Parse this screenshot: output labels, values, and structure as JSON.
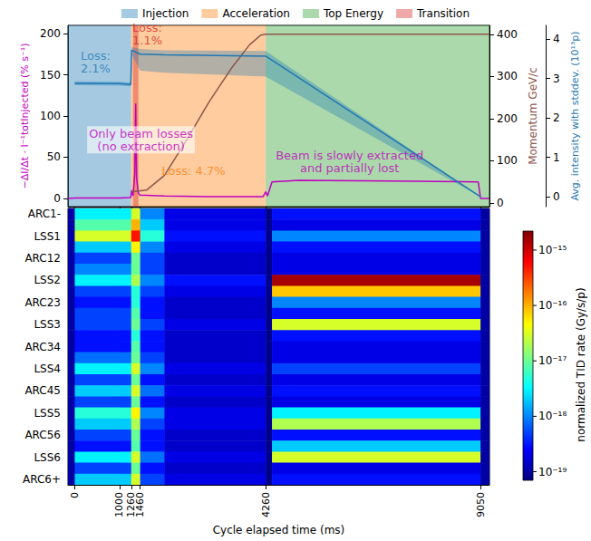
{
  "chart_data": {
    "type": "line",
    "x_label": "Cycle elapsed time (ms)",
    "xlim": [
      -150,
      9250
    ],
    "xticks": [
      0,
      1000,
      1260,
      1460,
      4260,
      9050
    ],
    "y_label": "−ΔI/Δt · I⁻¹totInjected (% s⁻¹)",
    "ylim": [
      -10,
      210
    ],
    "yticks": [
      0,
      50,
      100,
      150,
      200
    ],
    "y2_label": "Momentum GeV/c",
    "y2lim": [
      -9,
      421
    ],
    "y2ticks": [
      0,
      100,
      200,
      300,
      400
    ],
    "y3_label": "Avg. intensity with stddev. (10¹³p)",
    "y3lim": [
      -0.25,
      4.35
    ],
    "y3ticks": [
      0,
      1,
      2,
      3,
      4
    ],
    "grid": false,
    "legend": "top",
    "regions": [
      {
        "name": "Injection",
        "color": "#1f77b4",
        "x": [
          -150,
          1260
        ]
      },
      {
        "name": "Acceleration",
        "color": "#ff7f0e",
        "x": [
          1260,
          4260
        ]
      },
      {
        "name": "Top Energy",
        "color": "#2ca02c",
        "x": [
          4260,
          9250
        ]
      },
      {
        "name": "Transition",
        "color": "#d62728",
        "x": [
          1300,
          1420
        ]
      }
    ],
    "series": [
      {
        "type": "line",
        "axis": "y",
        "color": "#bf00bf",
        "x": [
          -150,
          0,
          1000,
          1250,
          1270,
          1300,
          1340,
          1360,
          1380,
          1420,
          1460,
          2000,
          3000,
          4200,
          4260,
          4300,
          4400,
          5000,
          7000,
          9000,
          9050,
          9250
        ],
        "values": [
          0,
          0.5,
          0.5,
          1,
          10,
          3,
          30,
          115,
          25,
          6,
          4,
          3,
          2,
          2,
          8,
          3,
          20,
          22,
          21,
          20,
          0,
          0
        ]
      },
      {
        "type": "line",
        "axis": "y2",
        "color": "#8c564b",
        "x": [
          1260,
          1600,
          2000,
          2500,
          3000,
          3500,
          3900,
          4150,
          4260,
          9050,
          9250
        ],
        "values": [
          26,
          30,
          65,
          150,
          240,
          320,
          375,
          398,
          400,
          400,
          400
        ]
      },
      {
        "type": "line",
        "axis": "y3",
        "color": "#1f77b4",
        "x": [
          0,
          1000,
          1250,
          1270,
          1460,
          2000,
          4260,
          9050
        ],
        "values": [
          2.88,
          2.87,
          2.85,
          3.72,
          3.62,
          3.6,
          3.57,
          0
        ],
        "stddev_lower": [
          2.83,
          2.82,
          2.8,
          3.62,
          3.2,
          3.15,
          3.05,
          0
        ],
        "stddev_upper": [
          2.93,
          2.92,
          2.9,
          3.8,
          3.75,
          3.72,
          3.7,
          0
        ]
      }
    ],
    "annotations": [
      {
        "text": "Loss:\n2.1%",
        "x": 465,
        "y": 165,
        "color": "#1f77b4"
      },
      {
        "text": "Loss:\n1.1%",
        "x": 1620,
        "y": 200,
        "color": "#d62728"
      },
      {
        "text": "Only beam losses\n(no extraction)",
        "x": 1478,
        "y": 71,
        "color": "#bf00bf"
      },
      {
        "text": "Loss: 4.7%",
        "x": 2650,
        "y": 33,
        "color": "#ff7f0e"
      },
      {
        "text": "Beam is slowly extracted\nand partially lost",
        "x": 6130,
        "y": 45,
        "color": "#bf00bf"
      }
    ],
    "heatmap": {
      "rows": [
        "ARC1-",
        null,
        "LSS1",
        null,
        "ARC12",
        null,
        "LSS2",
        null,
        "ARC23",
        null,
        "LSS3",
        null,
        "ARC34",
        null,
        "LSS4",
        null,
        "ARC45",
        null,
        "LSS5",
        null,
        "ARC56",
        null,
        "LSS6",
        null,
        "ARC6+"
      ],
      "x_edges": [
        -150,
        0,
        1000,
        1260,
        1460,
        2000,
        4260,
        4400,
        9050,
        9250
      ],
      "values": [
        [
          1e-19,
          3e-18,
          3e-18,
          3e-17,
          1e-18,
          2e-19,
          8e-20,
          3e-19,
          1e-19
        ],
        [
          1e-19,
          8e-18,
          8e-18,
          1e-16,
          2e-18,
          2e-19,
          8e-20,
          2e-19,
          1e-19
        ],
        [
          1e-19,
          3e-17,
          3e-17,
          5e-16,
          5e-18,
          3e-19,
          8e-20,
          1e-18,
          1e-19
        ],
        [
          1e-19,
          2e-18,
          2e-18,
          5e-17,
          1e-18,
          2e-19,
          8e-20,
          3e-19,
          1e-19
        ],
        [
          1e-19,
          5e-19,
          5e-19,
          1e-17,
          5e-19,
          1.5e-19,
          8e-20,
          2e-19,
          1e-19
        ],
        [
          1e-19,
          1e-18,
          1e-18,
          1e-17,
          5e-19,
          1.5e-19,
          8e-20,
          2e-19,
          1e-19
        ],
        [
          1e-19,
          3e-18,
          3e-18,
          2e-17,
          1e-18,
          3e-19,
          8e-20,
          1.5e-15,
          1e-19
        ],
        [
          1e-19,
          5e-19,
          5e-19,
          5e-18,
          5e-19,
          2e-19,
          8e-20,
          8e-17,
          1e-19
        ],
        [
          1e-19,
          3e-19,
          3e-19,
          5e-18,
          3e-19,
          1.5e-19,
          8e-20,
          1e-18,
          1e-19
        ],
        [
          1e-19,
          5e-19,
          5e-19,
          8e-18,
          3e-19,
          1.5e-19,
          8e-20,
          3e-19,
          1e-19
        ],
        [
          1e-19,
          5e-19,
          5e-19,
          1e-17,
          5e-19,
          2e-19,
          8e-20,
          3e-17,
          1e-19
        ],
        [
          1e-19,
          3e-19,
          3e-19,
          5e-18,
          3e-19,
          1.5e-19,
          8e-20,
          3e-19,
          1e-19
        ],
        [
          1e-19,
          3e-19,
          3e-19,
          8e-18,
          3e-19,
          1.5e-19,
          8e-20,
          2e-19,
          1e-19
        ],
        [
          1e-19,
          8e-19,
          8e-19,
          1e-17,
          5e-19,
          1.5e-19,
          8e-20,
          2e-19,
          1e-19
        ],
        [
          1e-19,
          3e-18,
          3e-18,
          3e-17,
          1e-18,
          2e-19,
          8e-20,
          5e-19,
          1e-19
        ],
        [
          1e-19,
          5e-19,
          5e-19,
          1e-17,
          3e-19,
          1.5e-19,
          8e-20,
          2e-19,
          1e-19
        ],
        [
          1e-19,
          2e-18,
          2e-18,
          3e-17,
          8e-19,
          2e-19,
          8e-20,
          3e-19,
          1e-19
        ],
        [
          1e-19,
          5e-19,
          5e-19,
          1e-17,
          3e-19,
          1.5e-19,
          8e-20,
          2e-19,
          1e-19
        ],
        [
          1e-19,
          5e-18,
          5e-18,
          5e-17,
          1e-18,
          2e-19,
          8e-20,
          3e-18,
          1e-19
        ],
        [
          1e-19,
          2e-18,
          2e-18,
          2e-17,
          5e-19,
          2e-19,
          8e-20,
          2e-17,
          1e-19
        ],
        [
          1e-19,
          5e-19,
          5e-19,
          1e-17,
          3e-19,
          1.5e-19,
          8e-20,
          3e-19,
          1e-19
        ],
        [
          1e-19,
          3e-19,
          3e-19,
          8e-18,
          3e-19,
          1.5e-19,
          8e-20,
          2e-18,
          1e-19
        ],
        [
          1e-19,
          3e-18,
          3e-18,
          3e-17,
          8e-19,
          2e-19,
          8e-20,
          3e-17,
          1e-19
        ],
        [
          1e-19,
          5e-19,
          5e-19,
          1e-17,
          3e-19,
          1.5e-19,
          8e-20,
          2e-19,
          1e-19
        ],
        [
          1e-19,
          2e-18,
          2e-18,
          3e-17,
          5e-19,
          2e-19,
          8e-20,
          3e-19,
          1e-19
        ]
      ],
      "colorbar": {
        "label": "normalized TID rate (Gy/s/p)",
        "range": [
          7e-20,
          2.2e-15
        ],
        "log": true,
        "ticks": [
          {
            "value": 1e-19,
            "label": "10⁻¹⁹"
          },
          {
            "value": 1e-18,
            "label": "10⁻¹⁸"
          },
          {
            "value": 1e-17,
            "label": "10⁻¹⁷"
          },
          {
            "value": 1e-16,
            "label": "10⁻¹⁶"
          },
          {
            "value": 1e-15,
            "label": "10⁻¹⁵"
          }
        ]
      }
    }
  }
}
